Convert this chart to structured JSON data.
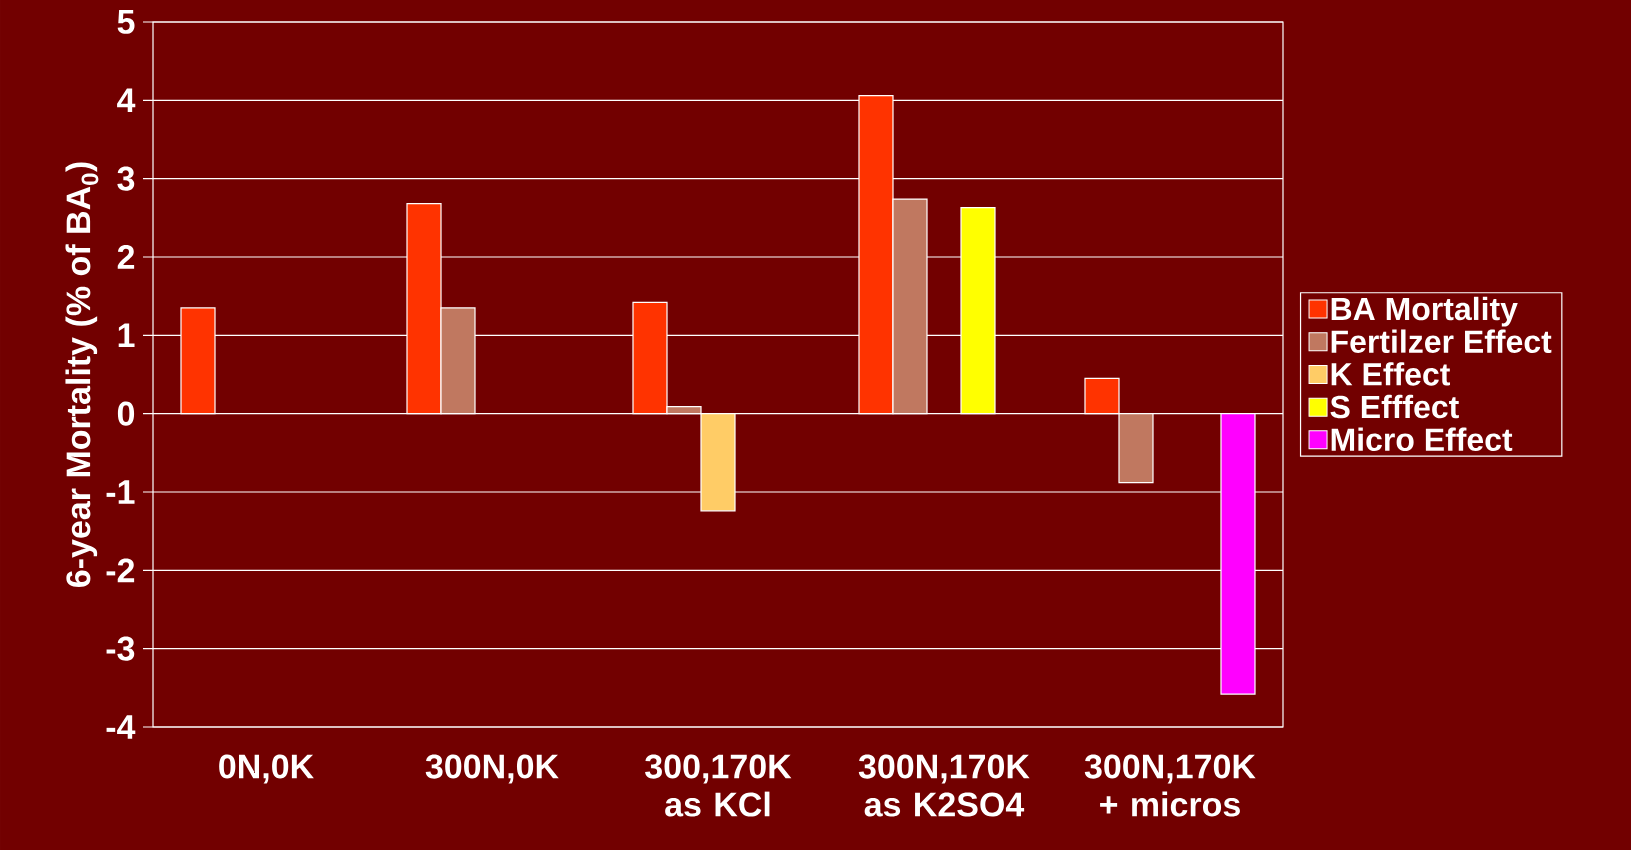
{
  "chart_data": {
    "type": "bar",
    "ylabel": "6-year Mortality (% of BA$_{0}$)",
    "categories": [
      "0N,0K",
      "300N,0K",
      "300,170K as KCl",
      "300N,170K as K2SO4",
      "300N,170K + micros"
    ],
    "series": [
      {
        "name": "BA Mortality",
        "color": "#ff3300",
        "values": [
          1.35,
          2.68,
          1.42,
          4.06,
          0.45
        ]
      },
      {
        "name": "Fertilzer Effect",
        "color": "#c07860",
        "values": [
          null,
          1.35,
          0.09,
          2.74,
          -0.88
        ]
      },
      {
        "name": "K Effect",
        "color": "#ffcc66",
        "values": [
          null,
          null,
          -1.24,
          null,
          null
        ]
      },
      {
        "name": "S Efffect",
        "color": "#ffff00",
        "values": [
          null,
          null,
          null,
          2.63,
          null
        ]
      },
      {
        "name": "Micro Effect",
        "color": "#ff00ff",
        "values": [
          null,
          null,
          null,
          null,
          -3.58
        ]
      }
    ],
    "ylim": [
      -4,
      5
    ],
    "yticks": [
      -4,
      -3,
      -2,
      -1,
      0,
      1,
      2,
      3,
      4,
      5
    ],
    "grid": "y",
    "legend": "right"
  }
}
